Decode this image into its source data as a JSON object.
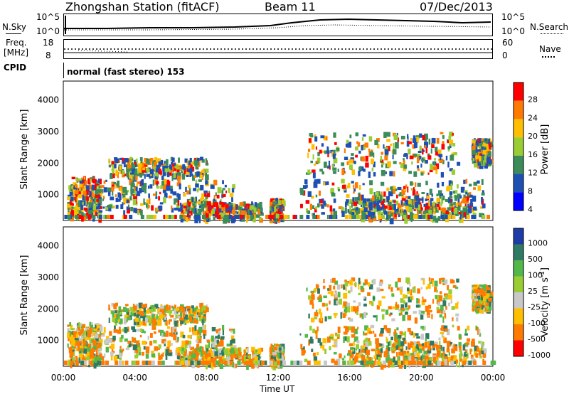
{
  "header": {
    "station": "Zhongshan Station (fitACF)",
    "beam": "Beam 11",
    "date": "07/Dec/2013"
  },
  "sky_panel": {
    "left_label": "N.Sky",
    "left_ticks": [
      "10^5",
      "10^0"
    ],
    "right_ticks": [
      "10^5",
      "10^0"
    ],
    "right_label": "N.Search"
  },
  "freq_panel": {
    "left_label_1": "Freq.",
    "left_label_2": "[MHz]",
    "left_ticks": [
      "18",
      "8"
    ],
    "right_ticks": [
      "60",
      "0"
    ],
    "right_label": "Nave"
  },
  "cpid": {
    "label": "CPID",
    "mode": "normal (fast stereo) 153"
  },
  "chart_data": [
    {
      "type": "heatmap",
      "title": "",
      "quantity": "Power",
      "colorbar_label": "Power [dB]",
      "colorbar_ticks": [
        "28",
        "24",
        "20",
        "16",
        "12",
        "8",
        "4"
      ],
      "colorbar_colors": [
        "#ff0000",
        "#ff7a00",
        "#ffbf00",
        "#9acd32",
        "#3c8c5a",
        "#1e50b4",
        "#0000ff"
      ],
      "ylabel": "Slant Range [km]",
      "yticks": [
        1000,
        2000,
        3000,
        4000
      ],
      "ylim": [
        180,
        4600
      ],
      "xlim": [
        0,
        24
      ],
      "xlabel": "Time UT"
    },
    {
      "type": "heatmap",
      "title": "",
      "quantity": "Velocity",
      "colorbar_label": "Velocity [m s",
      "colorbar_label_sup": "-1",
      "colorbar_label_end": "]",
      "colorbar_ticks": [
        "1000",
        "500",
        "100",
        "25",
        "-25",
        "-100",
        "-500",
        "-1000"
      ],
      "colorbar_colors": [
        "#1e3ca8",
        "#2f7a64",
        "#52b84a",
        "#9acd32",
        "#c8c8c8",
        "#ffbf00",
        "#ff7a00",
        "#ff0000"
      ],
      "ylabel": "Slant Range [km]",
      "yticks": [
        1000,
        2000,
        3000,
        4000
      ],
      "ylim": [
        180,
        4600
      ],
      "xlim": [
        0,
        24
      ],
      "xlabel": "Time UT"
    }
  ],
  "time_axis": {
    "ticks": [
      "00:00",
      "04:00",
      "08:00",
      "12:00",
      "16:00",
      "20:00",
      "00:00"
    ],
    "label": "Time UT"
  }
}
